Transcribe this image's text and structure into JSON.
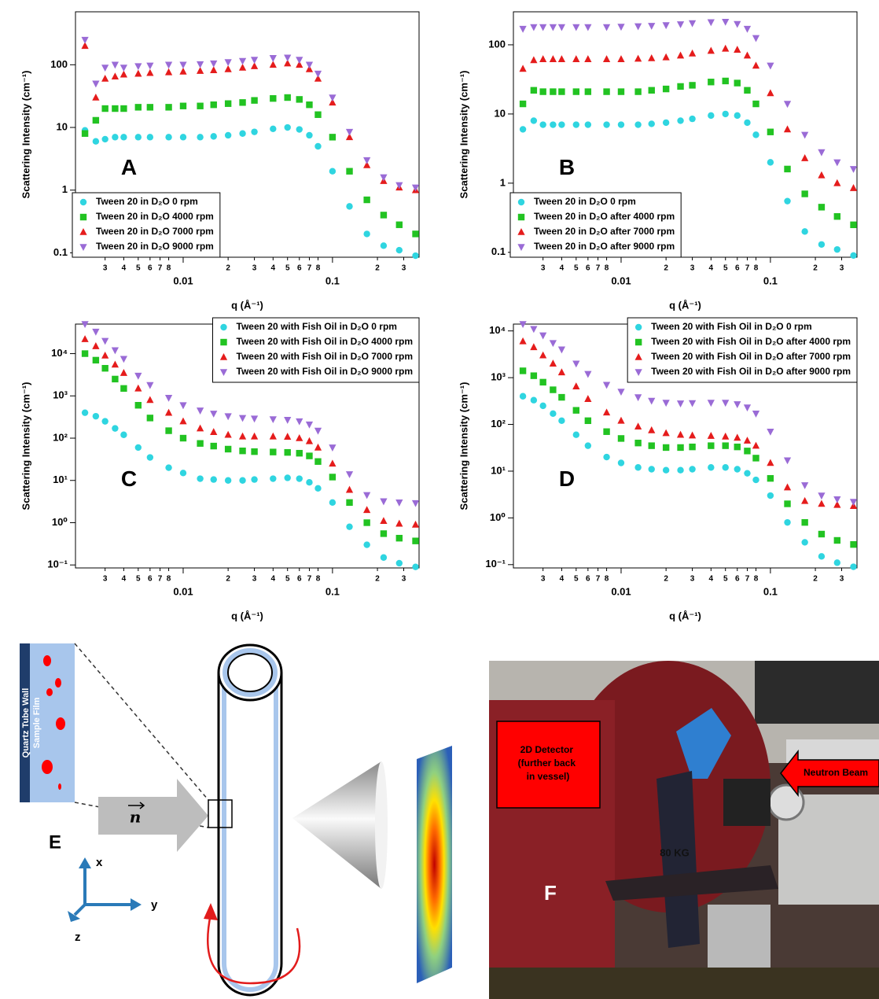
{
  "chart_data": [
    {
      "type": "scatter",
      "label": "A",
      "x_label": "q (Å⁻¹)",
      "y_label": "Scattering Intensity (cm⁻¹)",
      "log_x": true,
      "log_y": true,
      "legend": "lower left",
      "xlim": [
        0.0019,
        0.38
      ],
      "ylim": [
        0.085,
        700
      ],
      "xticks": [
        {
          "value": 0.003,
          "label": "3"
        },
        {
          "value": 0.004,
          "label": "4"
        },
        {
          "value": 0.005,
          "label": "5"
        },
        {
          "value": 0.006,
          "label": "6"
        },
        {
          "value": 0.007,
          "label": "7"
        },
        {
          "value": 0.008,
          "label": "8"
        },
        0.01,
        {
          "value": 0.02,
          "label": "2"
        },
        {
          "value": 0.03,
          "label": "3"
        },
        {
          "value": 0.04,
          "label": "4"
        },
        {
          "value": 0.05,
          "label": "5"
        },
        {
          "value": 0.06,
          "label": "6"
        },
        {
          "value": 0.07,
          "label": "7"
        },
        {
          "value": 0.08,
          "label": "8"
        },
        0.1,
        {
          "value": 0.2,
          "label": "2"
        },
        {
          "value": 0.3,
          "label": "3"
        }
      ],
      "yticks": [
        0.1,
        1,
        10,
        100
      ],
      "x": [
        0.0022,
        0.0026,
        0.003,
        0.0035,
        0.004,
        0.005,
        0.006,
        0.008,
        0.01,
        0.013,
        0.016,
        0.02,
        0.025,
        0.03,
        0.04,
        0.05,
        0.06,
        0.07,
        0.08,
        0.1,
        0.13,
        0.17,
        0.22,
        0.28,
        0.36
      ],
      "series": [
        {
          "name": "Tween 20 in D₂O 0 rpm",
          "color": "#2fd5e0",
          "marker": "circle",
          "values": [
            9,
            6,
            6.5,
            7,
            7,
            7,
            7,
            7,
            7,
            7,
            7.2,
            7.5,
            8,
            8.5,
            9.5,
            10,
            9.3,
            7.5,
            5,
            2,
            0.55,
            0.2,
            0.13,
            0.11,
            0.09
          ]
        },
        {
          "name": "Tween 20 in D₂O 4000 rpm",
          "color": "#22c322",
          "marker": "square",
          "values": [
            8,
            13,
            20,
            20,
            20,
            21,
            21,
            21,
            22,
            22,
            23,
            24,
            25,
            27,
            29,
            30,
            28,
            23,
            16,
            7,
            2,
            0.7,
            0.4,
            0.28,
            0.2
          ]
        },
        {
          "name": "Tween 20 in D₂O 7000 rpm",
          "color": "#e51c1c",
          "marker": "triangle-up",
          "values": [
            200,
            30,
            60,
            65,
            70,
            72,
            74,
            76,
            78,
            80,
            82,
            85,
            90,
            95,
            100,
            105,
            100,
            85,
            60,
            25,
            7,
            2.5,
            1.4,
            1.1,
            1
          ]
        },
        {
          "name": "Tween 20 in D₂O 9000 rpm",
          "color": "#9a6bd6",
          "marker": "triangle-down",
          "values": [
            250,
            50,
            90,
            100,
            90,
            95,
            97,
            100,
            100,
            102,
            105,
            110,
            115,
            120,
            128,
            130,
            120,
            100,
            72,
            30,
            8.5,
            3,
            1.6,
            1.2,
            1.1
          ]
        }
      ]
    },
    {
      "type": "scatter",
      "label": "B",
      "x_label": "q (Å⁻¹)",
      "y_label": "Scattering Intensity (cm⁻¹)",
      "log_x": true,
      "log_y": true,
      "legend": "lower left",
      "xlim": [
        0.0019,
        0.38
      ],
      "ylim": [
        0.085,
        300
      ],
      "xticks": [
        {
          "value": 0.003,
          "label": "3"
        },
        {
          "value": 0.004,
          "label": "4"
        },
        {
          "value": 0.005,
          "label": "5"
        },
        {
          "value": 0.006,
          "label": "6"
        },
        {
          "value": 0.007,
          "label": "7"
        },
        {
          "value": 0.008,
          "label": "8"
        },
        0.01,
        {
          "value": 0.02,
          "label": "2"
        },
        {
          "value": 0.03,
          "label": "3"
        },
        {
          "value": 0.04,
          "label": "4"
        },
        {
          "value": 0.05,
          "label": "5"
        },
        {
          "value": 0.06,
          "label": "6"
        },
        {
          "value": 0.07,
          "label": "7"
        },
        {
          "value": 0.08,
          "label": "8"
        },
        0.1,
        {
          "value": 0.2,
          "label": "2"
        },
        {
          "value": 0.3,
          "label": "3"
        }
      ],
      "yticks": [
        0.1,
        1,
        10,
        100
      ],
      "x": [
        0.0022,
        0.0026,
        0.003,
        0.0035,
        0.004,
        0.005,
        0.006,
        0.008,
        0.01,
        0.013,
        0.016,
        0.02,
        0.025,
        0.03,
        0.04,
        0.05,
        0.06,
        0.07,
        0.08,
        0.1,
        0.13,
        0.17,
        0.22,
        0.28,
        0.36
      ],
      "series": [
        {
          "name": "Tween 20 in D₂O 0 rpm",
          "color": "#2fd5e0",
          "marker": "circle",
          "values": [
            6,
            8,
            7,
            7,
            7,
            7,
            7,
            7,
            7,
            7,
            7.2,
            7.5,
            8,
            8.5,
            9.5,
            10,
            9.5,
            7.5,
            5,
            2,
            0.55,
            0.2,
            0.13,
            0.11,
            0.09
          ]
        },
        {
          "name": "Tween 20 in D₂O after 4000 rpm",
          "color": "#22c322",
          "marker": "square",
          "values": [
            14,
            22,
            21,
            21,
            21,
            21,
            21,
            21,
            21,
            21,
            22,
            23,
            25,
            26,
            29,
            30,
            28,
            22,
            14,
            5.5,
            1.6,
            0.7,
            0.45,
            0.33,
            0.25
          ]
        },
        {
          "name": "Tween 20 in D₂O after 7000 rpm",
          "color": "#e51c1c",
          "marker": "triangle-up",
          "values": [
            45,
            60,
            62,
            62,
            62,
            62,
            62,
            62,
            62,
            63,
            64,
            66,
            70,
            75,
            82,
            88,
            85,
            70,
            50,
            20,
            6,
            2.3,
            1.3,
            1,
            0.85
          ]
        },
        {
          "name": "Tween 20 in D₂O after 9000 rpm",
          "color": "#9a6bd6",
          "marker": "triangle-down",
          "values": [
            170,
            180,
            180,
            180,
            180,
            180,
            180,
            180,
            182,
            185,
            188,
            192,
            198,
            205,
            212,
            215,
            200,
            170,
            125,
            50,
            14,
            5,
            2.8,
            2,
            1.6
          ]
        }
      ]
    },
    {
      "type": "scatter",
      "label": "C",
      "x_label": "q (Å⁻¹)",
      "y_label": "Scattering Intensity (cm⁻¹)",
      "log_x": true,
      "log_y": true,
      "legend": "upper right",
      "xlim": [
        0.0019,
        0.38
      ],
      "ylim": [
        0.085,
        50000
      ],
      "xticks": [
        {
          "value": 0.003,
          "label": "3"
        },
        {
          "value": 0.004,
          "label": "4"
        },
        {
          "value": 0.005,
          "label": "5"
        },
        {
          "value": 0.006,
          "label": "6"
        },
        {
          "value": 0.007,
          "label": "7"
        },
        {
          "value": 0.008,
          "label": "8"
        },
        0.01,
        {
          "value": 0.02,
          "label": "2"
        },
        {
          "value": 0.03,
          "label": "3"
        },
        {
          "value": 0.04,
          "label": "4"
        },
        {
          "value": 0.05,
          "label": "5"
        },
        {
          "value": 0.06,
          "label": "6"
        },
        {
          "value": 0.07,
          "label": "7"
        },
        {
          "value": 0.08,
          "label": "8"
        },
        0.1,
        {
          "value": 0.2,
          "label": "2"
        },
        {
          "value": 0.3,
          "label": "3"
        }
      ],
      "yticks": [
        {
          "value": 0.1,
          "label": "10⁻¹"
        },
        {
          "value": 1,
          "label": "10⁰"
        },
        {
          "value": 10,
          "label": "10¹"
        },
        {
          "value": 100,
          "label": "10²"
        },
        {
          "value": 1000,
          "label": "10³"
        },
        {
          "value": 10000,
          "label": "10⁴"
        }
      ],
      "x": [
        0.0022,
        0.0026,
        0.003,
        0.0035,
        0.004,
        0.005,
        0.006,
        0.008,
        0.01,
        0.013,
        0.016,
        0.02,
        0.025,
        0.03,
        0.04,
        0.05,
        0.06,
        0.07,
        0.08,
        0.1,
        0.13,
        0.17,
        0.22,
        0.28,
        0.36
      ],
      "series": [
        {
          "name": "Tween 20 with Fish Oil in D₂O 0 rpm",
          "color": "#2fd5e0",
          "marker": "circle",
          "values": [
            400,
            330,
            250,
            170,
            120,
            60,
            35,
            20,
            15,
            11,
            10.5,
            10,
            10,
            10.5,
            11,
            11.5,
            11,
            9,
            6.5,
            3,
            0.8,
            0.3,
            0.15,
            0.11,
            0.09
          ]
        },
        {
          "name": "Tween 20 with Fish Oil in D₂O 4000 rpm",
          "color": "#22c322",
          "marker": "square",
          "values": [
            10000,
            7000,
            4500,
            2500,
            1500,
            600,
            300,
            150,
            100,
            75,
            65,
            55,
            50,
            48,
            47,
            46,
            44,
            38,
            28,
            12,
            3,
            1,
            0.55,
            0.43,
            0.37
          ]
        },
        {
          "name": "Tween 20 with Fish Oil in D₂O 7000 rpm",
          "color": "#e51c1c",
          "marker": "triangle-up",
          "values": [
            22000,
            15000,
            9000,
            5500,
            3500,
            1500,
            800,
            400,
            250,
            170,
            140,
            120,
            110,
            110,
            110,
            108,
            100,
            85,
            60,
            25,
            6,
            2,
            1.1,
            0.95,
            0.9
          ]
        },
        {
          "name": "Tween 20 with Fish Oil in D₂O 9000 rpm",
          "color": "#9a6bd6",
          "marker": "triangle-down",
          "values": [
            50000,
            33000,
            20000,
            12000,
            7500,
            3000,
            1800,
            900,
            600,
            450,
            380,
            330,
            300,
            290,
            280,
            270,
            250,
            210,
            150,
            60,
            14,
            4.5,
            3.2,
            3,
            2.9
          ]
        }
      ]
    },
    {
      "type": "scatter",
      "label": "D",
      "x_label": "q (Å⁻¹)",
      "y_label": "Scattering Intensity (cm⁻¹)",
      "log_x": true,
      "log_y": true,
      "legend": "upper right",
      "xlim": [
        0.0019,
        0.38
      ],
      "ylim": [
        0.085,
        14000
      ],
      "xticks": [
        {
          "value": 0.003,
          "label": "3"
        },
        {
          "value": 0.004,
          "label": "4"
        },
        {
          "value": 0.005,
          "label": "5"
        },
        {
          "value": 0.006,
          "label": "6"
        },
        {
          "value": 0.007,
          "label": "7"
        },
        {
          "value": 0.008,
          "label": "8"
        },
        0.01,
        {
          "value": 0.02,
          "label": "2"
        },
        {
          "value": 0.03,
          "label": "3"
        },
        {
          "value": 0.04,
          "label": "4"
        },
        {
          "value": 0.05,
          "label": "5"
        },
        {
          "value": 0.06,
          "label": "6"
        },
        {
          "value": 0.07,
          "label": "7"
        },
        {
          "value": 0.08,
          "label": "8"
        },
        0.1,
        {
          "value": 0.2,
          "label": "2"
        },
        {
          "value": 0.3,
          "label": "3"
        }
      ],
      "yticks": [
        {
          "value": 0.1,
          "label": "10⁻¹"
        },
        {
          "value": 1,
          "label": "10⁰"
        },
        {
          "value": 10,
          "label": "10¹"
        },
        {
          "value": 100,
          "label": "10²"
        },
        {
          "value": 1000,
          "label": "10³"
        },
        {
          "value": 10000,
          "label": "10⁴"
        }
      ],
      "x": [
        0.0022,
        0.0026,
        0.003,
        0.0035,
        0.004,
        0.005,
        0.006,
        0.008,
        0.01,
        0.013,
        0.016,
        0.02,
        0.025,
        0.03,
        0.04,
        0.05,
        0.06,
        0.07,
        0.08,
        0.1,
        0.13,
        0.17,
        0.22,
        0.28,
        0.36
      ],
      "series": [
        {
          "name": "Tween 20 with Fish Oil in D₂O 0 rpm",
          "color": "#2fd5e0",
          "marker": "circle",
          "values": [
            400,
            330,
            250,
            170,
            120,
            60,
            35,
            20,
            15,
            12,
            11,
            10.5,
            10.5,
            11,
            12,
            12,
            11,
            9,
            6.5,
            3,
            0.8,
            0.3,
            0.15,
            0.11,
            0.09
          ]
        },
        {
          "name": "Tween 20 with Fish Oil in D₂O after 4000 rpm",
          "color": "#22c322",
          "marker": "square",
          "values": [
            1400,
            1100,
            800,
            550,
            380,
            200,
            120,
            70,
            50,
            40,
            35,
            32,
            32,
            33,
            35,
            35,
            33,
            27,
            19,
            7,
            2,
            0.8,
            0.45,
            0.33,
            0.27
          ]
        },
        {
          "name": "Tween 20 with Fish Oil in D₂O after 7000 rpm",
          "color": "#e51c1c",
          "marker": "triangle-up",
          "values": [
            6000,
            4500,
            3000,
            2000,
            1300,
            650,
            350,
            180,
            120,
            90,
            75,
            65,
            60,
            58,
            57,
            55,
            52,
            45,
            35,
            15,
            4.5,
            2.3,
            2,
            1.9,
            1.8
          ]
        },
        {
          "name": "Tween 20 with Fish Oil in D₂O after 9000 rpm",
          "color": "#9a6bd6",
          "marker": "triangle-down",
          "values": [
            14000,
            11000,
            8000,
            5500,
            4000,
            2000,
            1200,
            700,
            500,
            380,
            320,
            290,
            280,
            285,
            290,
            290,
            270,
            230,
            170,
            70,
            17,
            5,
            3,
            2.5,
            2.2
          ]
        }
      ]
    }
  ],
  "diagram": {
    "label": "E",
    "wall": "Quartz Tube Wall",
    "film": "Sample Film",
    "neutron": "n",
    "axes": [
      "x",
      "y",
      "z"
    ]
  },
  "photo": {
    "label": "F",
    "detector": [
      "2D Detector",
      "(further back",
      "in vessel)"
    ],
    "beam": "Neutron Beam",
    "weight": "80 KG"
  }
}
